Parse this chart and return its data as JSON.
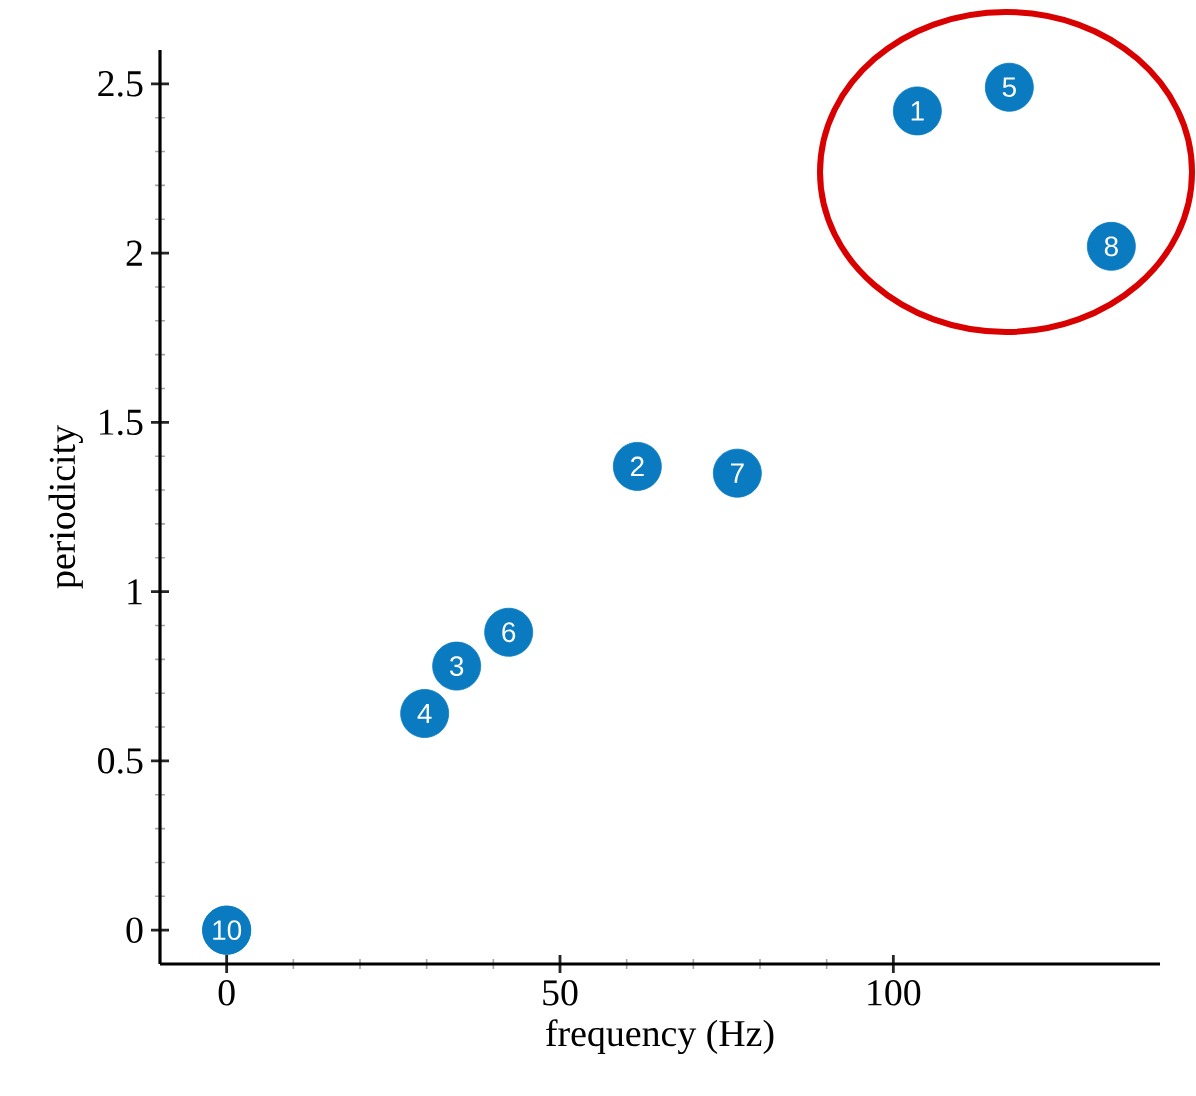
{
  "chart_data": {
    "type": "scatter",
    "xlabel": "frequency (Hz)",
    "ylabel": "periodicity",
    "x": [
      103.6,
      61.6,
      34.5,
      29.7,
      117.4,
      42.3,
      76.6,
      132.7,
      0,
      0
    ],
    "series": [
      {
        "color": "#0a7bc1",
        "values": [
          2.42,
          1.37,
          0.78,
          0.64,
          2.49,
          0.88,
          1.35,
          2.02,
          0,
          0
        ]
      }
    ],
    "xlim": [
      -10,
      140
    ],
    "ylim": [
      -0.1,
      2.6
    ],
    "xticks": [
      0,
      50,
      100
    ],
    "yticks": [
      0,
      0.5,
      1,
      1.5,
      2,
      2.5
    ],
    "marker": "circle",
    "grid": false,
    "legend": false,
    "annotations": [
      {
        "text": "1",
        "x": 103.6,
        "y": 2.42
      },
      {
        "text": "2",
        "x": 61.6,
        "y": 1.37
      },
      {
        "text": "3",
        "x": 34.5,
        "y": 0.78
      },
      {
        "text": "4",
        "x": 29.7,
        "y": 0.64
      },
      {
        "text": "5",
        "x": 117.4,
        "y": 2.49
      },
      {
        "text": "6",
        "x": 42.3,
        "y": 0.88
      },
      {
        "text": "7",
        "x": 76.6,
        "y": 1.35
      },
      {
        "text": "8",
        "x": 132.7,
        "y": 2.02
      },
      {
        "text": "10",
        "x": 0,
        "y": 0
      }
    ]
  }
}
